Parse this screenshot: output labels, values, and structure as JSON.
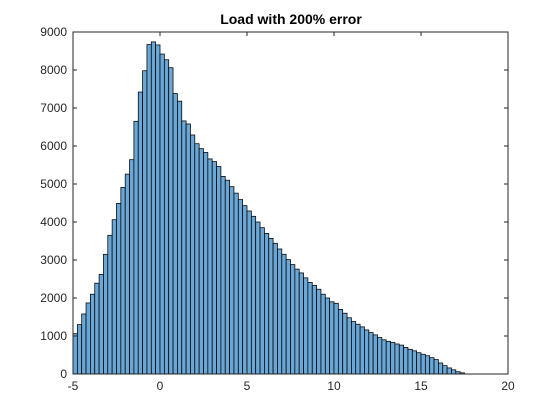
{
  "chart_data": {
    "type": "bar",
    "title": "Load with 200% error",
    "xlabel": "",
    "ylabel": "",
    "xlim": [
      -5,
      20
    ],
    "ylim": [
      0,
      9000
    ],
    "xticks": [
      -5,
      0,
      5,
      10,
      15,
      20
    ],
    "yticks": [
      0,
      1000,
      2000,
      3000,
      4000,
      5000,
      6000,
      7000,
      8000,
      9000
    ],
    "grid": false,
    "bar_color": "#6aa7d6",
    "bin_width": 0.25,
    "bin_start": -5,
    "values": [
      1060,
      1300,
      1580,
      1870,
      2100,
      2390,
      2620,
      3150,
      3650,
      4060,
      4490,
      4910,
      5260,
      5640,
      6650,
      7420,
      7980,
      8670,
      8740,
      8660,
      8420,
      8270,
      8060,
      7380,
      7180,
      6660,
      6580,
      6290,
      6060,
      5930,
      5830,
      5660,
      5590,
      5460,
      5200,
      5100,
      4930,
      4760,
      4590,
      4430,
      4290,
      4150,
      4000,
      3850,
      3700,
      3570,
      3440,
      3290,
      3150,
      3010,
      2880,
      2760,
      2660,
      2530,
      2410,
      2330,
      2230,
      2100,
      2000,
      1900,
      1860,
      1700,
      1600,
      1480,
      1380,
      1310,
      1240,
      1160,
      1090,
      1030,
      960,
      900,
      860,
      830,
      790,
      760,
      700,
      650,
      610,
      560,
      520,
      480,
      430,
      380,
      290,
      220,
      160,
      110,
      60,
      30
    ]
  }
}
